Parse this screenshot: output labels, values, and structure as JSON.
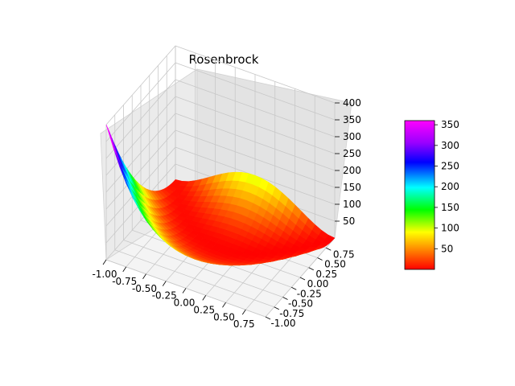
{
  "chart_data": {
    "type": "surface3d",
    "title": "Rosenbrock",
    "function": "(1 - x)^2 + 100 * (y - x^2)^2",
    "x_range": [
      -1.0,
      1.0
    ],
    "y_range": [
      -1.0,
      1.0
    ],
    "z_range": [
      0,
      400
    ],
    "x_ticks": [
      "-1.00",
      "-0.75",
      "-0.50",
      "-0.25",
      "0.00",
      "0.25",
      "0.50",
      "0.75"
    ],
    "y_ticks": [
      "-1.00",
      "-0.75",
      "-0.50",
      "-0.25",
      "0.00",
      "0.25",
      "0.50",
      "0.75"
    ],
    "z_ticks": [
      "50",
      "100",
      "150",
      "200",
      "250",
      "300",
      "350",
      "400"
    ],
    "colormap": "gist_rainbow_r",
    "colorbar": {
      "ticks": [
        "50",
        "100",
        "150",
        "200",
        "250",
        "300",
        "350"
      ],
      "range": [
        0,
        360
      ],
      "colors": [
        "#ff0000",
        "#ff9900",
        "#ffff00",
        "#00ff00",
        "#00ffff",
        "#0000ff",
        "#9900ff",
        "#ff00ff"
      ]
    },
    "grid": true
  }
}
